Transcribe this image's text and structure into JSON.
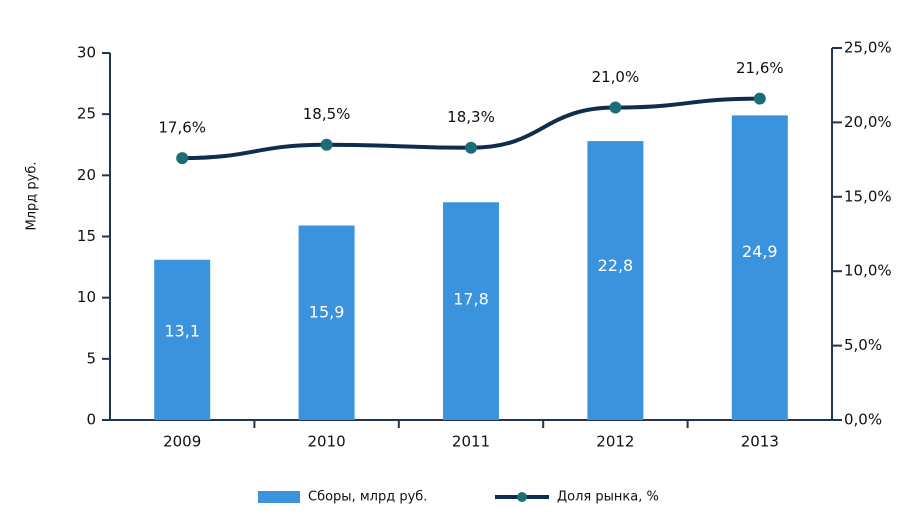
{
  "chart_data": {
    "type": "bar",
    "ylabel": "Млрд руб.",
    "categories": [
      "2009",
      "2010",
      "2011",
      "2012",
      "2013"
    ],
    "series": [
      {
        "name": "Сборы, млрд руб.",
        "type": "bar",
        "color": "#3a93dc",
        "values": [
          13.1,
          15.9,
          17.8,
          22.8,
          24.9
        ],
        "value_labels": [
          "13,1",
          "15,9",
          "17,8",
          "22,8",
          "24,9"
        ]
      },
      {
        "name": "Доля рынка, %",
        "type": "line",
        "axis": "y2",
        "color": "#0f2d4c",
        "marker_color": "#1d6d78",
        "values": [
          17.6,
          18.5,
          18.3,
          21.0,
          21.6
        ],
        "value_labels": [
          "17,6%",
          "18,5%",
          "18,3%",
          "21,0%",
          "21,6%"
        ]
      }
    ],
    "ylim": [
      0,
      30
    ],
    "yticks": [
      0,
      5,
      10,
      15,
      20,
      25,
      30
    ],
    "y2lim": [
      0,
      25
    ],
    "y2ticks": [
      {
        "value": 0,
        "label": "0,0%"
      },
      {
        "value": 5,
        "label": "5,0%"
      },
      {
        "value": 10,
        "label": "10,0%"
      },
      {
        "value": 15,
        "label": "15,0%"
      },
      {
        "value": 20,
        "label": "20,0%"
      },
      {
        "value": 25,
        "label": "25,0%"
      }
    ],
    "legend": "bottom"
  }
}
